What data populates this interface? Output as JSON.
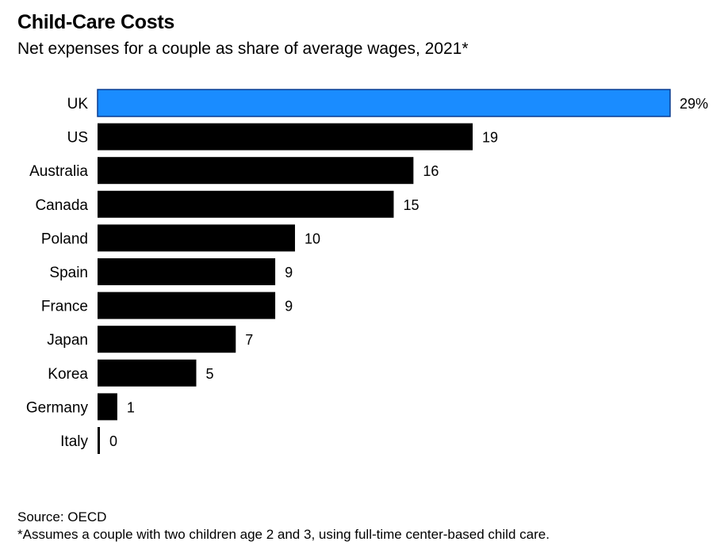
{
  "header": {
    "title": "Child-Care Costs",
    "subtitle": "Net expenses for a couple as share of average wages, 2021*"
  },
  "footer": {
    "source": "Source: OECD",
    "footnote": "*Assumes a couple with two children age 2 and 3, using full-time center-based child care."
  },
  "colors": {
    "highlight": "#1a8cff",
    "highlight_stroke": "#0a3d91",
    "bar": "#000000"
  },
  "chart_data": {
    "type": "bar",
    "orientation": "horizontal",
    "categories": [
      "UK",
      "US",
      "Australia",
      "Canada",
      "Poland",
      "Spain",
      "France",
      "Japan",
      "Korea",
      "Germany",
      "Italy"
    ],
    "values": [
      29,
      19,
      16,
      15,
      10,
      9,
      9,
      7,
      5,
      1,
      0
    ],
    "value_labels": [
      "29%",
      "19",
      "16",
      "15",
      "10",
      "9",
      "9",
      "7",
      "5",
      "1",
      "0"
    ],
    "highlight_category": "UK",
    "xlim": [
      0,
      29
    ],
    "unit": "%",
    "grid": false,
    "legend": "none"
  }
}
